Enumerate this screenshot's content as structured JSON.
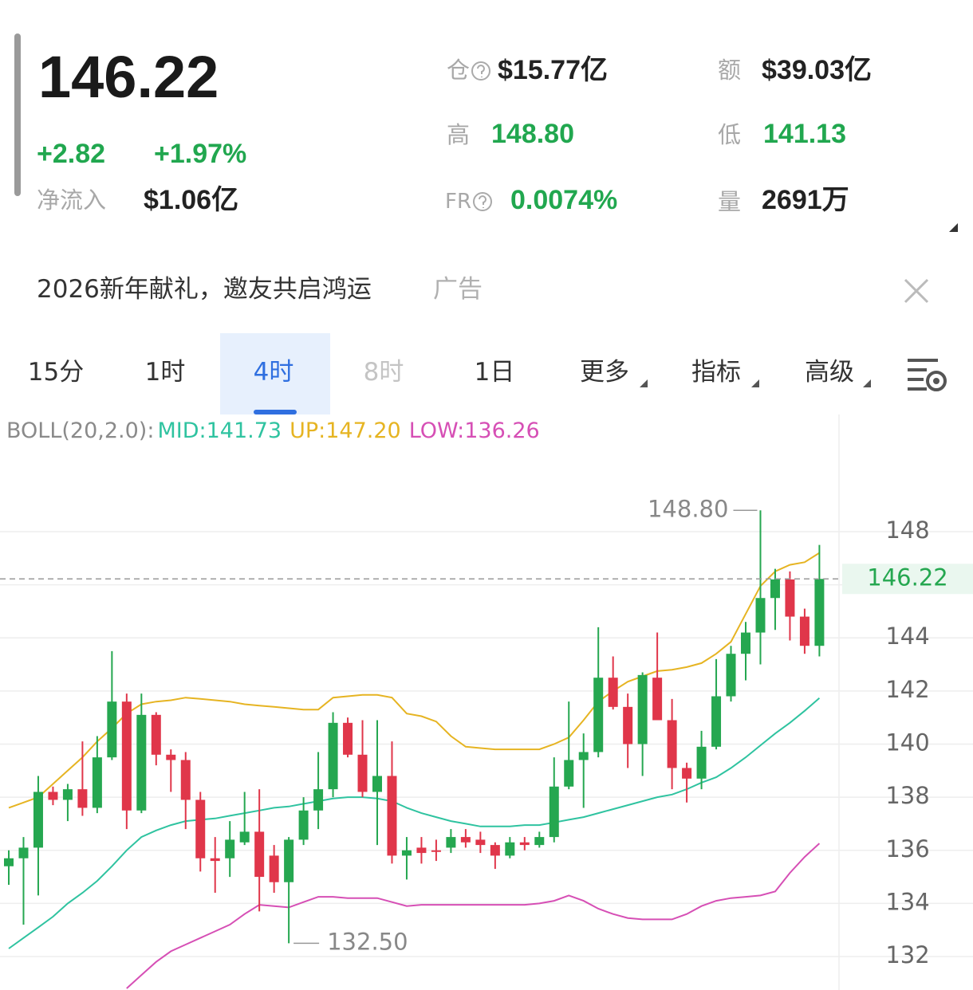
{
  "header": {
    "price": "146.22",
    "change": "+2.82",
    "change_pct": "+1.97%",
    "net_inflow_label": "净流入",
    "net_inflow": "$1.06亿",
    "stats": [
      {
        "label": "仓",
        "value": "$15.77亿"
      },
      {
        "label": "额",
        "value": "$39.03亿"
      },
      {
        "label": "高",
        "value": "148.80"
      },
      {
        "label": "低",
        "value": "141.13"
      },
      {
        "label": "FR",
        "value": "0.0074%"
      },
      {
        "label": "量",
        "value": "2691万"
      }
    ]
  },
  "ad": {
    "text": "2026新年献礼，邀友共启鸿运",
    "tag": "广告"
  },
  "tabs": [
    "15分",
    "1时",
    "4时",
    "8时",
    "1日",
    "更多",
    "指标",
    "高级"
  ],
  "chart_data": {
    "type": "candlestick",
    "legend_title": "BOLL(20,2.0):",
    "up_color": "#25a750",
    "down_color": "#e0364a",
    "open": [
      135.4,
      135.7,
      136.1,
      138.2,
      137.9,
      138.3,
      137.6,
      139.5,
      141.6,
      137.5,
      141.1,
      139.6,
      139.4,
      137.9,
      135.7,
      135.7,
      136.3,
      136.7,
      135.8,
      134.8,
      136.4,
      137.5,
      138.3,
      140.8,
      139.6,
      138.2,
      138.8,
      135.8,
      136.1,
      136.0,
      136.1,
      136.5,
      136.4,
      136.2,
      135.8,
      136.3,
      136.2,
      136.5,
      138.4,
      139.4,
      139.7,
      142.5,
      141.4,
      140.0,
      142.5,
      140.9,
      139.1,
      138.7,
      139.9,
      141.8,
      143.4,
      144.2,
      145.5,
      146.2,
      144.8,
      143.7
    ],
    "high": [
      136.0,
      136.5,
      138.8,
      138.4,
      138.5,
      140.1,
      140.3,
      143.5,
      141.9,
      141.9,
      141.2,
      139.8,
      139.7,
      138.2,
      136.5,
      137.1,
      138.2,
      138.3,
      136.2,
      136.5,
      138.0,
      139.7,
      141.2,
      141.0,
      140.9,
      140.9,
      140.1,
      136.5,
      136.5,
      136.4,
      136.8,
      136.8,
      136.7,
      136.3,
      136.5,
      136.5,
      136.7,
      139.5,
      141.6,
      140.4,
      144.4,
      143.3,
      141.9,
      142.7,
      144.2,
      141.7,
      139.3,
      140.5,
      143.2,
      143.7,
      144.6,
      148.8,
      146.6,
      146.5,
      145.1,
      147.5
    ],
    "low": [
      134.7,
      133.2,
      134.3,
      137.7,
      137.1,
      137.3,
      137.4,
      139.4,
      136.8,
      137.4,
      139.2,
      138.2,
      136.8,
      135.2,
      134.4,
      135.0,
      136.2,
      133.7,
      134.4,
      132.5,
      136.2,
      136.8,
      138.0,
      139.5,
      138.0,
      136.2,
      135.5,
      134.9,
      135.5,
      135.6,
      135.9,
      136.1,
      135.9,
      135.3,
      135.7,
      136.0,
      136.1,
      136.3,
      138.3,
      137.6,
      139.5,
      141.3,
      139.1,
      138.8,
      140.9,
      138.3,
      137.8,
      138.3,
      139.8,
      141.6,
      142.4,
      143.0,
      144.3,
      143.9,
      143.4,
      143.3
    ],
    "close": [
      135.7,
      136.1,
      138.2,
      137.9,
      138.3,
      137.6,
      139.5,
      141.6,
      137.5,
      141.1,
      139.6,
      139.4,
      137.9,
      135.7,
      135.6,
      136.4,
      136.7,
      135.0,
      134.8,
      136.4,
      137.5,
      138.3,
      140.8,
      139.6,
      138.2,
      138.8,
      135.8,
      136.0,
      135.9,
      135.95,
      136.5,
      136.3,
      136.2,
      135.8,
      136.3,
      136.2,
      136.5,
      138.4,
      139.4,
      139.7,
      142.5,
      141.4,
      140.0,
      142.6,
      140.9,
      139.1,
      138.7,
      139.9,
      141.8,
      143.4,
      144.2,
      145.5,
      146.2,
      144.8,
      143.7,
      146.22
    ],
    "overlays": [
      {
        "name": "MID:",
        "color": "#2fc3a0",
        "value_labels": {
          "55": "141.73"
        },
        "values": [
          132.3,
          132.7,
          133.1,
          133.5,
          134.0,
          134.4,
          134.85,
          135.4,
          136.0,
          136.5,
          136.75,
          136.95,
          137.1,
          137.15,
          137.2,
          137.3,
          137.4,
          137.5,
          137.6,
          137.65,
          137.75,
          137.85,
          137.95,
          138.0,
          138.0,
          137.95,
          137.85,
          137.6,
          137.4,
          137.25,
          137.1,
          137.0,
          136.9,
          136.9,
          136.9,
          136.95,
          136.95,
          137.05,
          137.15,
          137.25,
          137.4,
          137.55,
          137.7,
          137.85,
          138.0,
          138.1,
          138.3,
          138.55,
          138.75,
          139.1,
          139.5,
          139.95,
          140.4,
          140.8,
          141.25,
          141.73
        ]
      },
      {
        "name": "UP:",
        "color": "#e6b422",
        "value_labels": {
          "55": "147.20"
        },
        "values": [
          137.6,
          137.8,
          138.0,
          138.5,
          139.0,
          139.5,
          140.1,
          140.6,
          141.15,
          141.5,
          141.6,
          141.65,
          141.75,
          141.7,
          141.65,
          141.6,
          141.5,
          141.45,
          141.4,
          141.35,
          141.3,
          141.3,
          141.75,
          141.8,
          141.85,
          141.85,
          141.75,
          141.15,
          141.05,
          140.85,
          140.3,
          139.9,
          139.85,
          139.8,
          139.8,
          139.8,
          139.8,
          140.0,
          140.25,
          140.9,
          141.6,
          142.0,
          142.35,
          142.55,
          142.75,
          142.8,
          142.9,
          143.05,
          143.4,
          143.85,
          144.9,
          145.95,
          146.5,
          146.75,
          146.85,
          147.2
        ]
      },
      {
        "name": "LOW:",
        "color": "#d64fb5",
        "value_labels": {
          "55": "136.26"
        },
        "values": [
          null,
          null,
          null,
          null,
          null,
          null,
          null,
          null,
          130.8,
          131.3,
          131.8,
          132.2,
          132.45,
          132.7,
          132.95,
          133.2,
          133.6,
          133.95,
          133.9,
          133.85,
          134.05,
          134.25,
          134.25,
          134.2,
          134.2,
          134.2,
          134.05,
          133.9,
          133.95,
          133.95,
          133.95,
          133.95,
          133.95,
          133.95,
          133.95,
          133.95,
          134.0,
          134.1,
          134.3,
          134.1,
          133.8,
          133.6,
          133.45,
          133.4,
          133.4,
          133.4,
          133.6,
          133.9,
          134.1,
          134.2,
          134.25,
          134.3,
          134.45,
          135.15,
          135.75,
          136.26
        ]
      }
    ],
    "last": 146.22,
    "annotations": [
      {
        "value": 148.8,
        "label": "148.80"
      },
      {
        "value": 132.5,
        "label": "132.50"
      }
    ],
    "ylim": [
      130.74,
      151.21
    ],
    "yticks": [
      132,
      134,
      136,
      138,
      140,
      142,
      144,
      146,
      148
    ],
    "grid": true
  }
}
